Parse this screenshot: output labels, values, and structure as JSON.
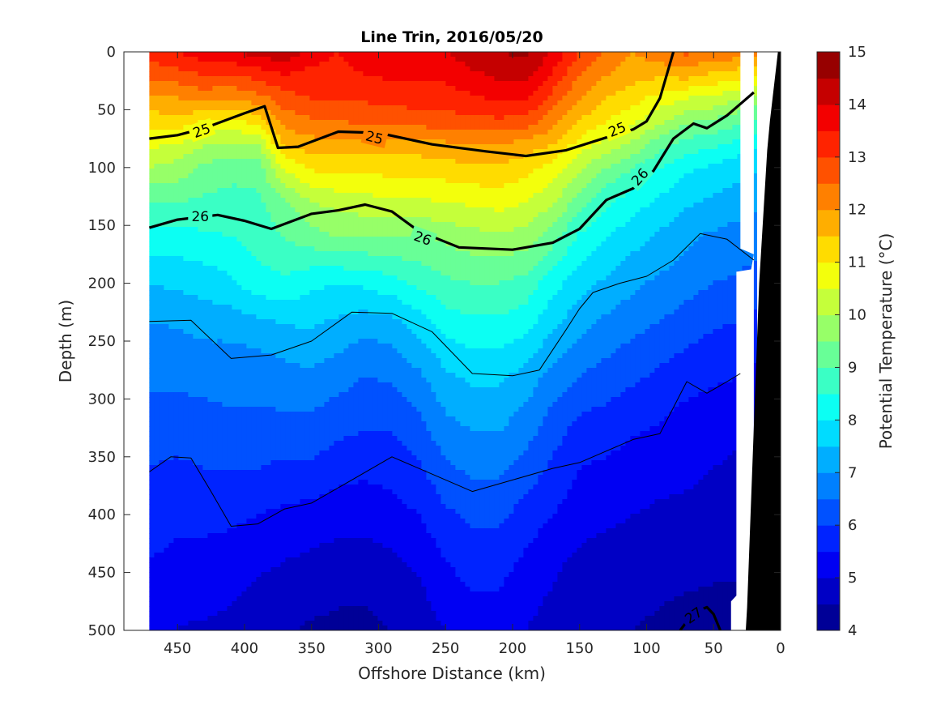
{
  "chart_data": {
    "type": "heatmap",
    "title": "Line Trin, 2016/05/20",
    "xlabel": "Offshore Distance (km)",
    "ylabel": "Depth (m)",
    "colorbar_label": "Potential Temperature (°C)",
    "xlim": [
      490,
      0
    ],
    "ylim": [
      500,
      0
    ],
    "x_reversed": true,
    "y_reversed": true,
    "xticks": [
      450,
      400,
      350,
      300,
      250,
      200,
      150,
      100,
      50,
      0
    ],
    "xtick_labels": [
      "450",
      "400",
      "350",
      "300",
      "250",
      "200",
      "150",
      "100",
      "50",
      "0"
    ],
    "yticks": [
      0,
      50,
      100,
      150,
      200,
      250,
      300,
      350,
      400,
      450,
      500
    ],
    "ytick_labels": [
      "0",
      "50",
      "100",
      "150",
      "200",
      "250",
      "300",
      "350",
      "400",
      "450",
      "500"
    ],
    "colorbar": {
      "range": [
        4,
        15
      ],
      "step": 0.5,
      "ticks": [
        4,
        5,
        6,
        7,
        8,
        9,
        10,
        11,
        12,
        13,
        14,
        15
      ],
      "tick_labels": [
        "4",
        "5",
        "6",
        "7",
        "8",
        "9",
        "10",
        "11",
        "12",
        "13",
        "14",
        "15"
      ]
    },
    "data_extent_km": [
      471,
      20
    ],
    "contour_labels": [
      {
        "text": "25",
        "x": 432,
        "y": 68,
        "angle": -20
      },
      {
        "text": "25",
        "x": 303,
        "y": 74,
        "angle": 14
      },
      {
        "text": "25",
        "x": 122,
        "y": 67,
        "angle": -22
      },
      {
        "text": "26",
        "x": 433,
        "y": 142,
        "angle": 0
      },
      {
        "text": "26",
        "x": 267,
        "y": 161,
        "angle": 20
      },
      {
        "text": "26",
        "x": 105,
        "y": 108,
        "angle": -48
      },
      {
        "text": "27",
        "x": 65,
        "y": 487,
        "angle": -35
      }
    ],
    "temperature_profiles": {
      "x_km": [
        471,
        450,
        430,
        410,
        390,
        370,
        350,
        330,
        310,
        290,
        270,
        250,
        230,
        210,
        190,
        170,
        150,
        130,
        110,
        90,
        70,
        50,
        30,
        20
      ],
      "depth_m": [
        0,
        20,
        40,
        60,
        80,
        100,
        130,
        160,
        200,
        240,
        280,
        320,
        360,
        400,
        440,
        480,
        500
      ],
      "rows": [
        [
          13.3,
          13.5,
          13.8,
          14.0,
          14.2,
          14.4,
          13.8,
          13.5,
          13.8,
          14.0,
          13.9,
          14.0,
          14.3,
          14.5,
          14.6,
          14.0,
          13.0,
          12.5,
          12.0,
          12.4,
          12.6,
          12.4,
          12.3,
          12.2
        ],
        [
          12.6,
          12.8,
          13.0,
          13.0,
          13.2,
          13.5,
          13.3,
          13.3,
          13.5,
          13.6,
          13.6,
          13.6,
          13.9,
          14.1,
          14.2,
          13.4,
          12.5,
          12.0,
          11.7,
          11.6,
          11.7,
          11.4,
          11.2,
          11.0
        ],
        [
          11.9,
          12.0,
          12.2,
          12.0,
          12.3,
          12.8,
          13.0,
          13.0,
          13.1,
          13.2,
          13.3,
          13.3,
          13.4,
          13.6,
          13.6,
          12.8,
          12.0,
          11.5,
          11.2,
          10.8,
          10.5,
          10.4,
          10.0,
          9.8
        ],
        [
          11.2,
          11.3,
          11.0,
          10.8,
          11.2,
          12.2,
          12.4,
          12.5,
          12.6,
          12.6,
          12.7,
          12.8,
          12.8,
          12.9,
          12.8,
          12.2,
          11.5,
          11.0,
          10.6,
          10.1,
          9.6,
          9.4,
          9.1,
          8.9
        ],
        [
          10.6,
          10.5,
          10.0,
          9.9,
          10.0,
          11.6,
          11.8,
          11.8,
          11.8,
          11.8,
          11.8,
          11.9,
          12.0,
          12.0,
          11.8,
          11.5,
          10.8,
          10.3,
          9.9,
          9.2,
          8.8,
          8.6,
          8.3,
          8.1
        ],
        [
          10.0,
          9.8,
          9.4,
          9.2,
          9.2,
          10.6,
          11.1,
          11.2,
          11.2,
          11.2,
          11.2,
          11.3,
          11.4,
          11.4,
          11.2,
          10.8,
          10.1,
          9.5,
          9.0,
          8.5,
          8.1,
          7.9,
          7.7,
          7.6
        ],
        [
          9.0,
          9.0,
          8.9,
          8.8,
          8.9,
          9.4,
          10.0,
          10.2,
          10.3,
          10.4,
          10.4,
          10.5,
          10.6,
          10.7,
          10.5,
          10.1,
          9.2,
          8.6,
          8.2,
          7.9,
          7.6,
          7.4,
          7.2,
          7.1
        ],
        [
          8.3,
          8.3,
          8.4,
          8.5,
          8.7,
          9.0,
          9.3,
          9.5,
          9.5,
          9.5,
          9.5,
          9.6,
          9.8,
          9.9,
          9.8,
          9.2,
          8.4,
          8.0,
          7.7,
          7.4,
          7.1,
          6.9,
          6.8,
          6.7
        ],
        [
          7.5,
          7.6,
          7.7,
          7.9,
          8.3,
          8.4,
          8.1,
          8.0,
          8.1,
          8.3,
          8.6,
          8.9,
          9.0,
          9.0,
          8.8,
          8.2,
          7.7,
          7.4,
          7.1,
          6.9,
          6.7,
          6.5,
          6.4,
          6.3
        ],
        [
          6.9,
          7.0,
          7.1,
          7.1,
          7.2,
          7.4,
          7.5,
          7.3,
          7.1,
          7.2,
          7.6,
          8.1,
          8.3,
          8.3,
          8.1,
          7.5,
          7.1,
          6.8,
          6.6,
          6.4,
          6.2,
          6.0,
          5.9,
          5.8
        ],
        [
          6.6,
          6.6,
          6.7,
          6.7,
          6.7,
          6.8,
          6.9,
          6.7,
          6.5,
          6.6,
          6.9,
          7.4,
          7.6,
          7.6,
          7.3,
          6.8,
          6.5,
          6.3,
          6.1,
          5.9,
          5.7,
          5.6,
          5.5,
          5.4
        ],
        [
          6.3,
          6.3,
          6.3,
          6.4,
          6.4,
          6.4,
          6.4,
          6.2,
          6.1,
          6.1,
          6.4,
          6.9,
          7.1,
          7.1,
          6.8,
          6.3,
          5.9,
          5.8,
          5.6,
          5.5,
          5.3,
          5.2,
          5.1,
          5.1
        ],
        [
          6.0,
          5.9,
          6.0,
          6.0,
          6.0,
          5.9,
          5.9,
          5.7,
          5.6,
          5.7,
          5.9,
          6.4,
          6.6,
          6.6,
          6.3,
          5.9,
          5.5,
          5.4,
          5.3,
          5.2,
          5.1,
          5.0,
          4.9,
          4.9
        ],
        [
          5.7,
          5.6,
          5.6,
          5.6,
          5.5,
          5.4,
          5.3,
          5.2,
          5.2,
          5.3,
          5.5,
          5.9,
          6.1,
          6.1,
          5.8,
          5.5,
          5.2,
          5.1,
          5.0,
          4.9,
          4.9,
          4.8,
          4.8,
          4.7
        ],
        [
          5.5,
          5.4,
          5.4,
          5.3,
          5.1,
          5.0,
          4.9,
          4.8,
          4.8,
          4.9,
          5.1,
          5.5,
          5.7,
          5.7,
          5.4,
          5.1,
          4.9,
          4.8,
          4.8,
          4.7,
          4.7,
          4.6,
          4.6,
          4.6
        ],
        [
          5.2,
          5.1,
          5.1,
          5.0,
          4.8,
          4.7,
          4.6,
          4.5,
          4.5,
          4.6,
          4.8,
          5.2,
          5.4,
          5.4,
          5.1,
          4.9,
          4.7,
          4.6,
          4.6,
          4.5,
          4.4,
          4.4,
          4.4,
          4.4
        ],
        [
          5.0,
          5.0,
          4.9,
          4.8,
          4.7,
          4.6,
          4.4,
          4.4,
          4.4,
          4.5,
          4.7,
          5.0,
          5.2,
          5.2,
          5.0,
          4.8,
          4.6,
          4.5,
          4.5,
          4.4,
          4.3,
          4.3,
          4.3,
          4.3
        ]
      ]
    },
    "isopycnals": [
      {
        "label": "25",
        "weight": "bold",
        "x": [
          471,
          450,
          430,
          400,
          385,
          375,
          360,
          330,
          300,
          260,
          220,
          190,
          160,
          130,
          110,
          100,
          90,
          85,
          80
        ],
        "depth": [
          75,
          72,
          66,
          53,
          47,
          83,
          82,
          69,
          70,
          80,
          86,
          90,
          85,
          74,
          67,
          60,
          40,
          20,
          0
        ]
      },
      {
        "label": "26",
        "weight": "bold",
        "x": [
          471,
          450,
          420,
          400,
          380,
          350,
          330,
          310,
          290,
          270,
          240,
          200,
          170,
          150,
          130,
          110,
          95,
          80,
          65,
          55,
          40,
          30,
          20
        ],
        "depth": [
          152,
          145,
          141,
          146,
          153,
          140,
          137,
          132,
          138,
          155,
          169,
          171,
          165,
          153,
          128,
          118,
          103,
          75,
          62,
          66,
          55,
          45,
          35
        ]
      },
      {
        "label": "27",
        "weight": "bold",
        "x": [
          75,
          65,
          55,
          50,
          45
        ],
        "depth": [
          500,
          485,
          480,
          486,
          500
        ]
      },
      {
        "label": "",
        "weight": "thin",
        "x": [
          471,
          440,
          410,
          380,
          350,
          320,
          290,
          260,
          230,
          200,
          180,
          160,
          150,
          140,
          120,
          100,
          80,
          60,
          40,
          20
        ],
        "depth": [
          233,
          232,
          265,
          262,
          250,
          225,
          226,
          242,
          278,
          280,
          275,
          240,
          222,
          208,
          200,
          194,
          180,
          157,
          162,
          180
        ]
      },
      {
        "label": "",
        "weight": "thin",
        "x": [
          471,
          455,
          440,
          425,
          410,
          390,
          370,
          350,
          320,
          290,
          260,
          230,
          200,
          170,
          150,
          130,
          110,
          90,
          70,
          55,
          40,
          30
        ],
        "depth": [
          363,
          350,
          351,
          380,
          410,
          408,
          395,
          390,
          370,
          350,
          365,
          380,
          370,
          360,
          355,
          345,
          335,
          330,
          285,
          295,
          285,
          278
        ]
      }
    ]
  }
}
